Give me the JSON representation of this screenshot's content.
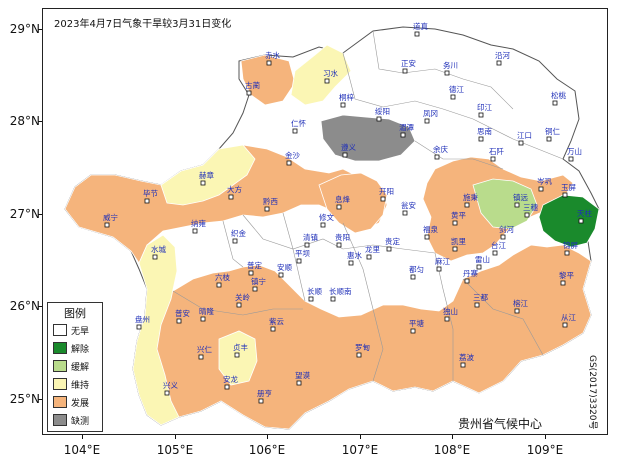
{
  "title": "2023年4月7日气象干旱较3月31日变化",
  "center": "贵州省气候中心",
  "doc_code": "GS(2017)3320号",
  "axes": {
    "lat_labels": [
      "29°N",
      "28°N",
      "27°N",
      "26°N",
      "25°N"
    ],
    "lon_labels": [
      "104°E",
      "105°E",
      "106°E",
      "107°E",
      "108°E",
      "109°E"
    ]
  },
  "legend": {
    "title": "图例",
    "items": [
      {
        "label": "无旱",
        "color": "#ffffff"
      },
      {
        "label": "解除",
        "color": "#1a8a2c"
      },
      {
        "label": "缓解",
        "color": "#b9dc8c"
      },
      {
        "label": "维持",
        "color": "#fbf6b4"
      },
      {
        "label": "发展",
        "color": "#f5b47c"
      },
      {
        "label": "缺测",
        "color": "#8c8c8c"
      }
    ]
  },
  "counties": [
    {
      "name": "道真",
      "status": "无旱"
    },
    {
      "name": "赤水",
      "status": "发展"
    },
    {
      "name": "习水",
      "status": "维持"
    },
    {
      "name": "正安",
      "status": "无旱"
    },
    {
      "name": "务川",
      "status": "无旱"
    },
    {
      "name": "沿河",
      "status": "无旱"
    },
    {
      "name": "桐梓",
      "status": "无旱"
    },
    {
      "name": "绥阳",
      "status": "无旱"
    },
    {
      "name": "凤冈",
      "status": "无旱"
    },
    {
      "name": "德江",
      "status": "无旱"
    },
    {
      "name": "印江",
      "status": "无旱"
    },
    {
      "name": "松桃",
      "status": "无旱"
    },
    {
      "name": "仁怀",
      "status": "缺测"
    },
    {
      "name": "湄潭",
      "status": "无旱"
    },
    {
      "name": "思南",
      "status": "无旱"
    },
    {
      "name": "江口",
      "status": "无旱"
    },
    {
      "name": "铜仁",
      "status": "无旱"
    },
    {
      "name": "遵义",
      "status": "缺测"
    },
    {
      "name": "余庆",
      "status": "无旱"
    },
    {
      "name": "石阡",
      "status": "发展"
    },
    {
      "name": "万山",
      "status": "无旱"
    },
    {
      "name": "金沙",
      "status": "发展"
    },
    {
      "name": "古蔺",
      "status": "无旱"
    },
    {
      "name": "毕节",
      "status": "发展"
    },
    {
      "name": "大方",
      "status": "发展"
    },
    {
      "name": "黔西",
      "status": "无旱"
    },
    {
      "name": "息烽",
      "status": "发展"
    },
    {
      "name": "开阳",
      "status": "发展"
    },
    {
      "name": "瓮安",
      "status": "无旱"
    },
    {
      "name": "施秉",
      "status": "发展"
    },
    {
      "name": "镇远",
      "status": "缓解"
    },
    {
      "name": "岑巩",
      "status": "发展"
    },
    {
      "name": "玉屏",
      "status": "发展"
    },
    {
      "name": "威宁",
      "status": "发展"
    },
    {
      "name": "赫章",
      "status": "维持"
    },
    {
      "name": "纳雍",
      "status": "无旱"
    },
    {
      "name": "织金",
      "status": "无旱"
    },
    {
      "name": "修文",
      "status": "无旱"
    },
    {
      "name": "清镇",
      "status": "无旱"
    },
    {
      "name": "贵阳",
      "status": "无旱"
    },
    {
      "name": "龙里",
      "status": "无旱"
    },
    {
      "name": "贵定",
      "status": "无旱"
    },
    {
      "name": "福泉",
      "status": "无旱"
    },
    {
      "name": "黄平",
      "status": "无旱"
    },
    {
      "name": "凯里",
      "status": "发展"
    },
    {
      "name": "剑河",
      "status": "发展"
    },
    {
      "name": "三穗",
      "status": "缓解"
    },
    {
      "name": "天柱",
      "status": "解除"
    },
    {
      "name": "锦屏",
      "status": "发展"
    },
    {
      "name": "麻江",
      "status": "发展"
    },
    {
      "name": "雷山",
      "status": "发展"
    },
    {
      "name": "台江",
      "status": "发展"
    },
    {
      "name": "黎平",
      "status": "发展"
    },
    {
      "name": "水城",
      "status": "维持"
    },
    {
      "name": "六枝",
      "status": "发展"
    },
    {
      "name": "普定",
      "status": "发展"
    },
    {
      "name": "安顺",
      "status": "发展"
    },
    {
      "name": "平坝",
      "status": "无旱"
    },
    {
      "name": "长顺",
      "status": "无旱"
    },
    {
      "name": "惠水",
      "status": "无旱"
    },
    {
      "name": "都匀",
      "status": "发展"
    },
    {
      "name": "丹寨",
      "status": "发展"
    },
    {
      "name": "榕江",
      "status": "无旱"
    },
    {
      "name": "从江",
      "status": "无旱"
    },
    {
      "name": "盘州",
      "status": "维持"
    },
    {
      "name": "普安",
      "status": "发展"
    },
    {
      "name": "晴隆",
      "status": "发展"
    },
    {
      "name": "关岭",
      "status": "发展"
    },
    {
      "name": "镇宁",
      "status": "发展"
    },
    {
      "name": "紫云",
      "status": "发展"
    },
    {
      "name": "长顺南",
      "status": "无旱"
    },
    {
      "name": "罗甸",
      "status": "发展"
    },
    {
      "name": "平塘",
      "status": "发展"
    },
    {
      "name": "独山",
      "status": "发展"
    },
    {
      "name": "三都",
      "status": "发展"
    },
    {
      "name": "荔波",
      "status": "发展"
    },
    {
      "name": "兴仁",
      "status": "发展"
    },
    {
      "name": "贞丰",
      "status": "维持"
    },
    {
      "name": "兴义",
      "status": "维持"
    },
    {
      "name": "安龙",
      "status": "发展"
    },
    {
      "name": "册亨",
      "status": "发展"
    },
    {
      "name": "望谟",
      "status": "发展"
    }
  ]
}
